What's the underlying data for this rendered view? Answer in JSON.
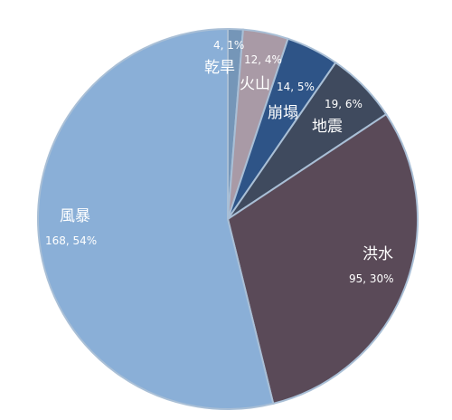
{
  "chart_data": {
    "type": "pie",
    "start_angle_deg": 0,
    "direction": "clockwise",
    "slices": [
      {
        "name": "乾旱",
        "value": 4,
        "percent": "1%",
        "value_label": "4, 1%",
        "color": "#7596b8"
      },
      {
        "name": "火山",
        "value": 12,
        "percent": "4%",
        "value_label": "12, 4%",
        "color": "#a99aa6"
      },
      {
        "name": "崩塌",
        "value": 14,
        "percent": "5%",
        "value_label": "14, 5%",
        "color": "#2e5487"
      },
      {
        "name": "地震",
        "value": 19,
        "percent": "6%",
        "value_label": "19, 6%",
        "color": "#3f4a5e"
      },
      {
        "name": "洪水",
        "value": 95,
        "percent": "30%",
        "value_label": "95, 30%",
        "color": "#5a4a58"
      },
      {
        "name": "風暴",
        "value": 168,
        "percent": "54%",
        "value_label": "168, 54%",
        "color": "#8aafd7"
      }
    ]
  }
}
